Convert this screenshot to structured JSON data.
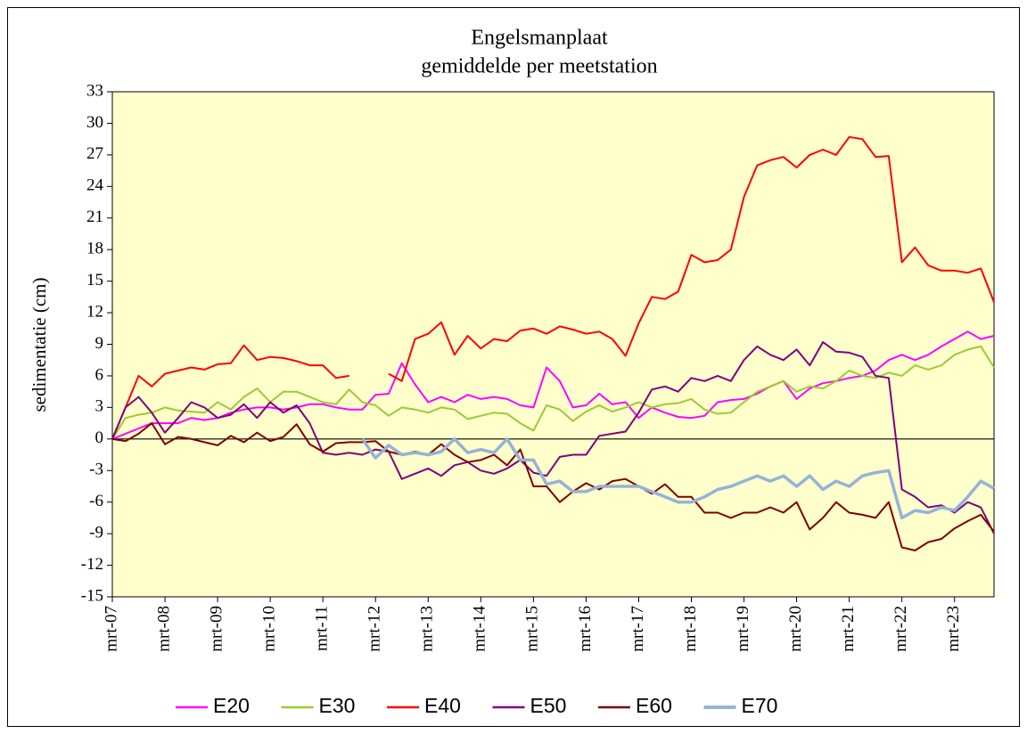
{
  "chart_data": {
    "type": "line",
    "title": "Engelsmanplaat",
    "subtitle": "gemiddelde per meetstation",
    "y_label": "sedimentatie (cm)",
    "x": [
      "2007-03",
      "2007-06",
      "2007-09",
      "2007-12",
      "2008-03",
      "2008-06",
      "2008-09",
      "2008-12",
      "2009-03",
      "2009-06",
      "2009-09",
      "2009-12",
      "2010-03",
      "2010-06",
      "2010-09",
      "2010-12",
      "2011-03",
      "2011-06",
      "2011-09",
      "2011-12",
      "2012-03",
      "2012-06",
      "2012-09",
      "2012-12",
      "2013-03",
      "2013-06",
      "2013-09",
      "2013-12",
      "2014-03",
      "2014-06",
      "2014-09",
      "2014-12",
      "2015-03",
      "2015-06",
      "2015-09",
      "2015-12",
      "2016-03",
      "2016-06",
      "2016-09",
      "2016-12",
      "2017-03",
      "2017-06",
      "2017-09",
      "2017-12",
      "2018-03",
      "2018-06",
      "2018-09",
      "2018-12",
      "2019-03",
      "2019-06",
      "2019-09",
      "2019-12",
      "2020-03",
      "2020-06",
      "2020-09",
      "2020-12",
      "2021-03",
      "2021-06",
      "2021-09",
      "2021-12",
      "2022-03",
      "2022-06",
      "2022-09",
      "2022-12",
      "2023-03",
      "2023-06",
      "2023-09",
      "2023-12"
    ],
    "series": [
      {
        "name": "E20",
        "color": "#ff00ff",
        "width": 2,
        "values": [
          0,
          0.5,
          1,
          1.5,
          1.5,
          1.5,
          2,
          1.8,
          2,
          2.5,
          2.8,
          3,
          3,
          2.8,
          3,
          3.3,
          3.3,
          3,
          2.8,
          2.8,
          4.2,
          4.3,
          7.2,
          5.2,
          3.5,
          4,
          3.5,
          4.2,
          3.8,
          4,
          3.8,
          3.2,
          3,
          6.8,
          5.5,
          3,
          3.2,
          4.3,
          3.3,
          3.5,
          2,
          3,
          2.5,
          2.1,
          2,
          2.2,
          3.5,
          3.7,
          3.8,
          4.3,
          5,
          5.5,
          3.8,
          4.8,
          5.3,
          5.5,
          5.8,
          6,
          6.5,
          7.5,
          8,
          7.5,
          8,
          8.8,
          9.5,
          10.2,
          9.5,
          9.8
        ]
      },
      {
        "name": "E30",
        "color": "#99cc33",
        "width": 2,
        "values": [
          0,
          2,
          2.3,
          2.5,
          3,
          2.7,
          2.6,
          2.5,
          3.5,
          2.8,
          4,
          4.8,
          3.5,
          4.5,
          4.5,
          4,
          3.5,
          3.3,
          4.7,
          3.5,
          3.2,
          2.2,
          3,
          2.8,
          2.5,
          3,
          2.8,
          1.9,
          2.2,
          2.5,
          2.4,
          1.5,
          0.8,
          3.2,
          2.8,
          1.7,
          2.6,
          3.2,
          2.6,
          3,
          3.5,
          3,
          3.3,
          3.4,
          3.8,
          2.8,
          2.4,
          2.5,
          3.5,
          4.5,
          5,
          5.5,
          4.5,
          5,
          4.8,
          5.5,
          6.5,
          6,
          5.8,
          6.3,
          6,
          7,
          6.6,
          7,
          8,
          8.5,
          8.8,
          6.8
        ]
      },
      {
        "name": "E40",
        "color": "#ff0000",
        "width": 2,
        "values": [
          0,
          3,
          6,
          5,
          6.2,
          6.5,
          6.8,
          6.6,
          7.1,
          7.2,
          8.9,
          7.5,
          7.8,
          7.7,
          7.4,
          7,
          7,
          5.8,
          6,
          null,
          null,
          6.2,
          5.5,
          9.5,
          10,
          11.1,
          8,
          9.8,
          8.6,
          9.5,
          9.3,
          10.3,
          10.5,
          10,
          10.7,
          10.4,
          10,
          10.2,
          9.5,
          7.9,
          11,
          13.5,
          13.3,
          14,
          17.5,
          16.8,
          17,
          18,
          23,
          26,
          26.5,
          26.8,
          25.8,
          27,
          27.5,
          27,
          28.7,
          28.5,
          26.8,
          26.9,
          16.8,
          18.2,
          16.5,
          16,
          16,
          15.8,
          16.2,
          13
        ]
      },
      {
        "name": "E50",
        "color": "#7f007f",
        "width": 2,
        "values": [
          0,
          3,
          4,
          2.5,
          0.6,
          2,
          3.5,
          3,
          2,
          2.3,
          3.3,
          2,
          3.5,
          2.5,
          3.2,
          1.5,
          -1.3,
          -1.5,
          -1.3,
          -1.5,
          -1,
          -1.2,
          -3.8,
          -3.3,
          -2.8,
          -3.5,
          -2.5,
          -2.2,
          -3,
          -3.3,
          -2.8,
          -2,
          -3.2,
          -3.5,
          -1.7,
          -1.5,
          -1.5,
          0.3,
          0.5,
          0.7,
          2.5,
          4.7,
          5,
          4.5,
          5.8,
          5.5,
          6,
          5.5,
          7.5,
          8.8,
          8,
          7.5,
          8.5,
          7,
          9.2,
          8.3,
          8.2,
          7.8,
          6,
          5.8,
          -4.8,
          -5.5,
          -6.5,
          -6.3,
          -7,
          -6,
          -6.5,
          -9
        ]
      },
      {
        "name": "E60",
        "color": "#7f0000",
        "width": 2,
        "values": [
          0,
          -0.2,
          0.5,
          1.5,
          -0.5,
          0.2,
          0,
          -0.3,
          -0.6,
          0.3,
          -0.3,
          0.6,
          -0.2,
          0.2,
          1.4,
          -0.5,
          -1.2,
          -0.4,
          -0.3,
          -0.3,
          -0.2,
          -1.2,
          -1.5,
          -1.2,
          -1.5,
          -0.5,
          -1.5,
          -2.2,
          -2,
          -1.5,
          -2.5,
          -1,
          -4.5,
          -4.5,
          -6,
          -5,
          -4.2,
          -4.8,
          -4,
          -3.8,
          -4.5,
          -5.2,
          -4.3,
          -5.5,
          -5.5,
          -7,
          -7,
          -7.5,
          -7,
          -7,
          -6.5,
          -7,
          -6,
          -8.6,
          -7.5,
          -6,
          -7,
          -7.2,
          -7.5,
          -6,
          -10.3,
          -10.6,
          -9.8,
          -9.5,
          -8.5,
          -7.8,
          -7.2,
          -8.8
        ]
      },
      {
        "name": "E70",
        "color": "#95b3d7",
        "width": 3.5,
        "values": [
          null,
          null,
          null,
          null,
          null,
          null,
          null,
          null,
          null,
          null,
          null,
          null,
          null,
          null,
          null,
          null,
          null,
          null,
          null,
          0,
          -1.8,
          -0.6,
          -1.5,
          -1.3,
          -1.5,
          -1.2,
          0,
          -1.3,
          -1,
          -1.3,
          0,
          -2,
          -2,
          -4.3,
          -4,
          -5,
          -5,
          -4.5,
          -4.5,
          -4.5,
          -4.5,
          -5,
          -5.5,
          -6,
          -6,
          -5.5,
          -4.8,
          -4.5,
          -4,
          -3.5,
          -4,
          -3.5,
          -4.5,
          -3.5,
          -4.8,
          -4,
          -4.5,
          -3.5,
          -3.2,
          -3,
          -7.5,
          -6.8,
          -7,
          -6.5,
          -6.8,
          -5.5,
          -4,
          -4.7
        ]
      }
    ],
    "xlim": [
      "2007-03",
      "2023-12"
    ],
    "xticks": [
      {
        "value": "2007-03",
        "label": "mrt-07"
      },
      {
        "value": "2008-03",
        "label": "mrt-08"
      },
      {
        "value": "2009-03",
        "label": "mrt-09"
      },
      {
        "value": "2010-03",
        "label": "mrt-10"
      },
      {
        "value": "2011-03",
        "label": "mrt-11"
      },
      {
        "value": "2012-03",
        "label": "mrt-12"
      },
      {
        "value": "2013-03",
        "label": "mrt-13"
      },
      {
        "value": "2014-03",
        "label": "mrt-14"
      },
      {
        "value": "2015-03",
        "label": "mrt-15"
      },
      {
        "value": "2016-03",
        "label": "mrt-16"
      },
      {
        "value": "2017-03",
        "label": "mrt-17"
      },
      {
        "value": "2018-03",
        "label": "mrt-18"
      },
      {
        "value": "2019-03",
        "label": "mrt-19"
      },
      {
        "value": "2020-03",
        "label": "mrt-20"
      },
      {
        "value": "2021-03",
        "label": "mrt-21"
      },
      {
        "value": "2022-03",
        "label": "mrt-22"
      },
      {
        "value": "2023-03",
        "label": "mrt-23"
      }
    ],
    "ylim": [
      -15,
      33
    ],
    "yticks": [
      -15,
      -12,
      -9,
      -6,
      -3,
      0,
      3,
      6,
      9,
      12,
      15,
      18,
      21,
      24,
      27,
      30,
      33
    ],
    "legend": "bottom",
    "plot_background": "#ffffcc"
  }
}
